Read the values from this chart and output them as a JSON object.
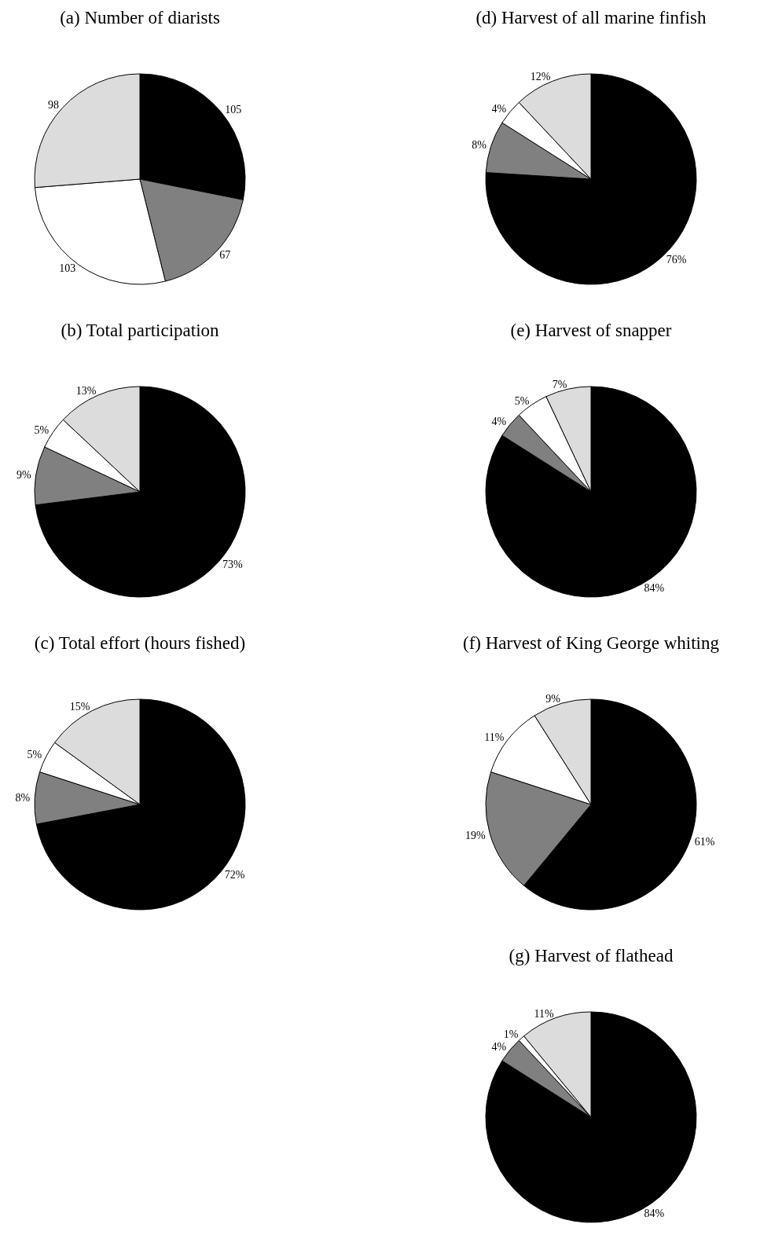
{
  "chart_data": [
    {
      "type": "pie",
      "title": "(a) Number of diarists",
      "categories": [
        null,
        null,
        null,
        null
      ],
      "values": [
        105,
        67,
        103,
        98
      ],
      "colors": [
        "#000000",
        "#808080",
        "#ffffff",
        "#dcdcdc"
      ],
      "value_labels": [
        "105",
        "67",
        "103",
        "98"
      ]
    },
    {
      "type": "pie",
      "title": "(b) Total participation",
      "categories": [
        null,
        null,
        null,
        null
      ],
      "values": [
        73,
        9,
        5,
        13
      ],
      "colors": [
        "#000000",
        "#808080",
        "#ffffff",
        "#dcdcdc"
      ],
      "value_labels": [
        "73%",
        "9%",
        "5%",
        "13%"
      ]
    },
    {
      "type": "pie",
      "title": "(c) Total effort (hours fished)",
      "categories": [
        null,
        null,
        null,
        null
      ],
      "values": [
        72,
        8,
        5,
        15
      ],
      "colors": [
        "#000000",
        "#808080",
        "#ffffff",
        "#dcdcdc"
      ],
      "value_labels": [
        "72%",
        "8%",
        "5%",
        "15%"
      ]
    },
    {
      "type": "pie",
      "title": "(d) Harvest of all marine finfish",
      "categories": [
        null,
        null,
        null,
        null
      ],
      "values": [
        76,
        8,
        4,
        12
      ],
      "colors": [
        "#000000",
        "#808080",
        "#ffffff",
        "#dcdcdc"
      ],
      "value_labels": [
        "76%",
        "8%",
        "4%",
        "12%"
      ]
    },
    {
      "type": "pie",
      "title": "(e) Harvest of snapper",
      "categories": [
        null,
        null,
        null,
        null
      ],
      "values": [
        84,
        4,
        5,
        7
      ],
      "colors": [
        "#000000",
        "#808080",
        "#ffffff",
        "#dcdcdc"
      ],
      "value_labels": [
        "84%",
        "4%",
        "5%",
        "7%"
      ]
    },
    {
      "type": "pie",
      "title": "(f) Harvest of King George whiting",
      "categories": [
        null,
        null,
        null,
        null
      ],
      "values": [
        61,
        19,
        11,
        9
      ],
      "colors": [
        "#000000",
        "#808080",
        "#ffffff",
        "#dcdcdc"
      ],
      "value_labels": [
        "61%",
        "19%",
        "11%",
        "9%"
      ]
    },
    {
      "type": "pie",
      "title": "(g) Harvest of flathead",
      "categories": [
        null,
        null,
        null,
        null
      ],
      "values": [
        84,
        4,
        1,
        11
      ],
      "colors": [
        "#000000",
        "#808080",
        "#ffffff",
        "#dcdcdc"
      ],
      "value_labels": [
        "84%",
        "4%",
        "1%",
        "11%"
      ]
    }
  ]
}
